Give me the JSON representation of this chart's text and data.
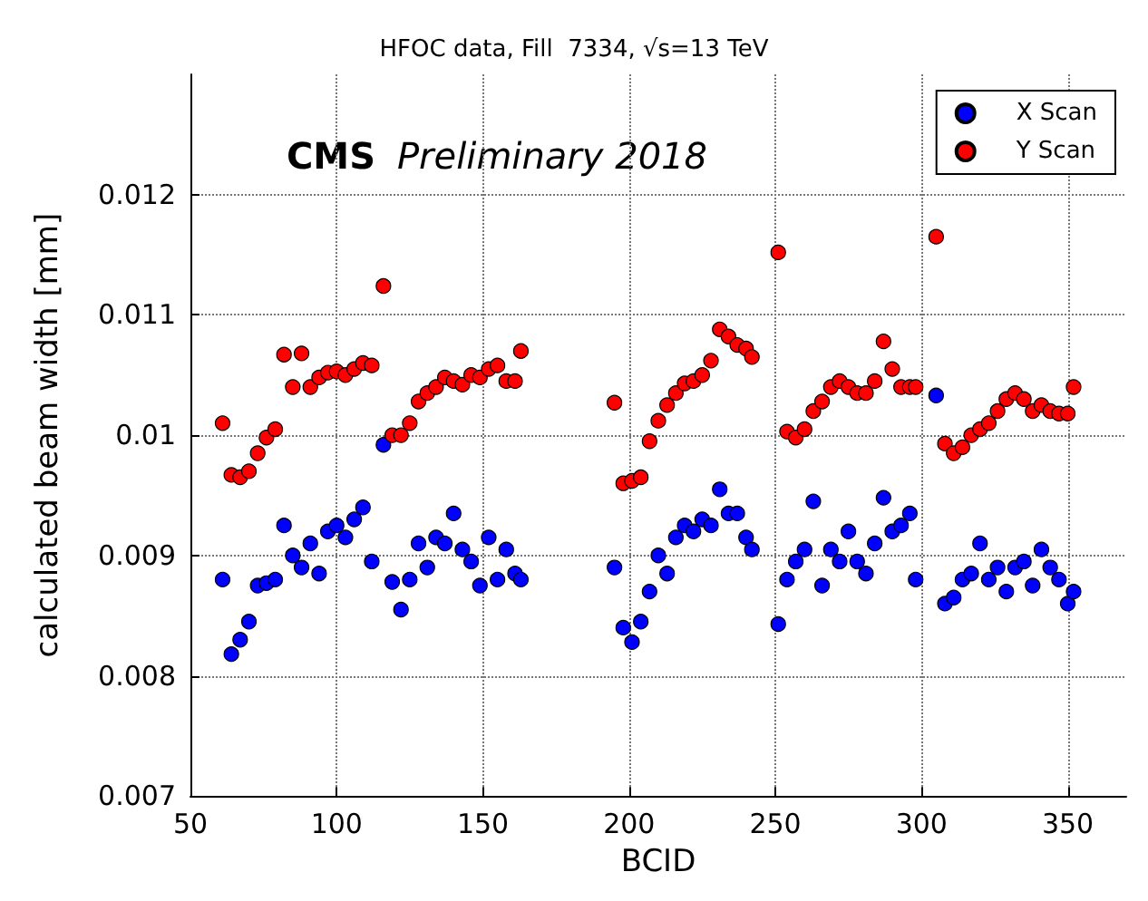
{
  "chart_data": {
    "type": "scatter",
    "title": "HFOC data, Fill  7334, √s=13 TeV",
    "xlabel": "BCID",
    "ylabel": "calculated beam width [mm]",
    "annotations": [
      "CMS",
      "Preliminary 2018"
    ],
    "x": [
      61,
      64,
      67,
      70,
      73,
      76,
      79,
      82,
      85,
      88,
      91,
      94,
      97,
      100,
      103,
      106,
      109,
      112,
      116,
      119,
      122,
      125,
      128,
      131,
      134,
      137,
      140,
      143,
      146,
      149,
      152,
      155,
      158,
      161,
      163,
      195,
      198,
      201,
      204,
      207,
      210,
      213,
      216,
      219,
      222,
      225,
      228,
      231,
      234,
      237,
      240,
      242,
      251,
      254,
      257,
      260,
      263,
      266,
      269,
      272,
      275,
      278,
      281,
      284,
      287,
      290,
      293,
      296,
      298,
      305,
      308,
      311,
      314,
      317,
      320,
      323,
      326,
      329,
      332,
      335,
      338,
      341,
      344,
      347,
      350,
      352
    ],
    "series": [
      {
        "name": "X Scan",
        "color": "#0000ff",
        "values": [
          0.0088,
          0.00818,
          0.0083,
          0.00845,
          0.00875,
          0.00877,
          0.0088,
          0.00925,
          0.009,
          0.0089,
          0.0091,
          0.00885,
          0.0092,
          0.00925,
          0.00915,
          0.0093,
          0.0094,
          0.00895,
          0.00992,
          0.00878,
          0.00855,
          0.0088,
          0.0091,
          0.0089,
          0.00915,
          0.0091,
          0.00935,
          0.00905,
          0.00895,
          0.00875,
          0.00915,
          0.0088,
          0.00905,
          0.00885,
          0.0088,
          0.0089,
          0.0084,
          0.00828,
          0.00845,
          0.0087,
          0.009,
          0.00885,
          0.00915,
          0.00925,
          0.0092,
          0.0093,
          0.00925,
          0.00955,
          0.00935,
          0.00935,
          0.00915,
          0.00905,
          0.00843,
          0.0088,
          0.00895,
          0.00905,
          0.00945,
          0.00875,
          0.00905,
          0.00895,
          0.0092,
          0.00895,
          0.00885,
          0.0091,
          0.00948,
          0.0092,
          0.00925,
          0.00935,
          0.0088,
          0.01033,
          0.0086,
          0.00865,
          0.0088,
          0.00885,
          0.0091,
          0.0088,
          0.0089,
          0.0087,
          0.0089,
          0.00895,
          0.00875,
          0.00905,
          0.0089,
          0.0088,
          0.0086,
          0.0087
        ]
      },
      {
        "name": "Y Scan",
        "color": "#ff0000",
        "values": [
          0.0101,
          0.00967,
          0.00965,
          0.0097,
          0.00985,
          0.00998,
          0.01005,
          0.01067,
          0.0104,
          0.01068,
          0.0104,
          0.01048,
          0.01052,
          0.01053,
          0.0105,
          0.01055,
          0.0106,
          0.01058,
          0.01124,
          0.01,
          0.01,
          0.0101,
          0.01028,
          0.01035,
          0.0104,
          0.01048,
          0.01045,
          0.01042,
          0.0105,
          0.01048,
          0.01055,
          0.01058,
          0.01045,
          0.01045,
          0.0107,
          0.01027,
          0.0096,
          0.00962,
          0.00965,
          0.00995,
          0.01012,
          0.01025,
          0.01035,
          0.01043,
          0.01045,
          0.0105,
          0.01062,
          0.01088,
          0.01082,
          0.01075,
          0.01072,
          0.01065,
          0.01152,
          0.01003,
          0.00998,
          0.01005,
          0.0102,
          0.01028,
          0.0104,
          0.01045,
          0.0104,
          0.01035,
          0.01035,
          0.01045,
          0.01078,
          0.01055,
          0.0104,
          0.0104,
          0.0104,
          0.01165,
          0.00993,
          0.00985,
          0.0099,
          0.01,
          0.01005,
          0.0101,
          0.0102,
          0.0103,
          0.01035,
          0.0103,
          0.0102,
          0.01025,
          0.0102,
          0.01018,
          0.01018,
          0.0104
        ]
      }
    ],
    "xlim": [
      50,
      370
    ],
    "xticks": [
      50,
      100,
      150,
      200,
      250,
      300,
      350
    ],
    "ylim": [
      0.007,
      0.013
    ],
    "yticks": [
      0.007,
      0.008,
      0.009,
      0.01,
      0.011,
      0.012
    ],
    "grid": true,
    "legend": "top right",
    "marker": "circle"
  }
}
